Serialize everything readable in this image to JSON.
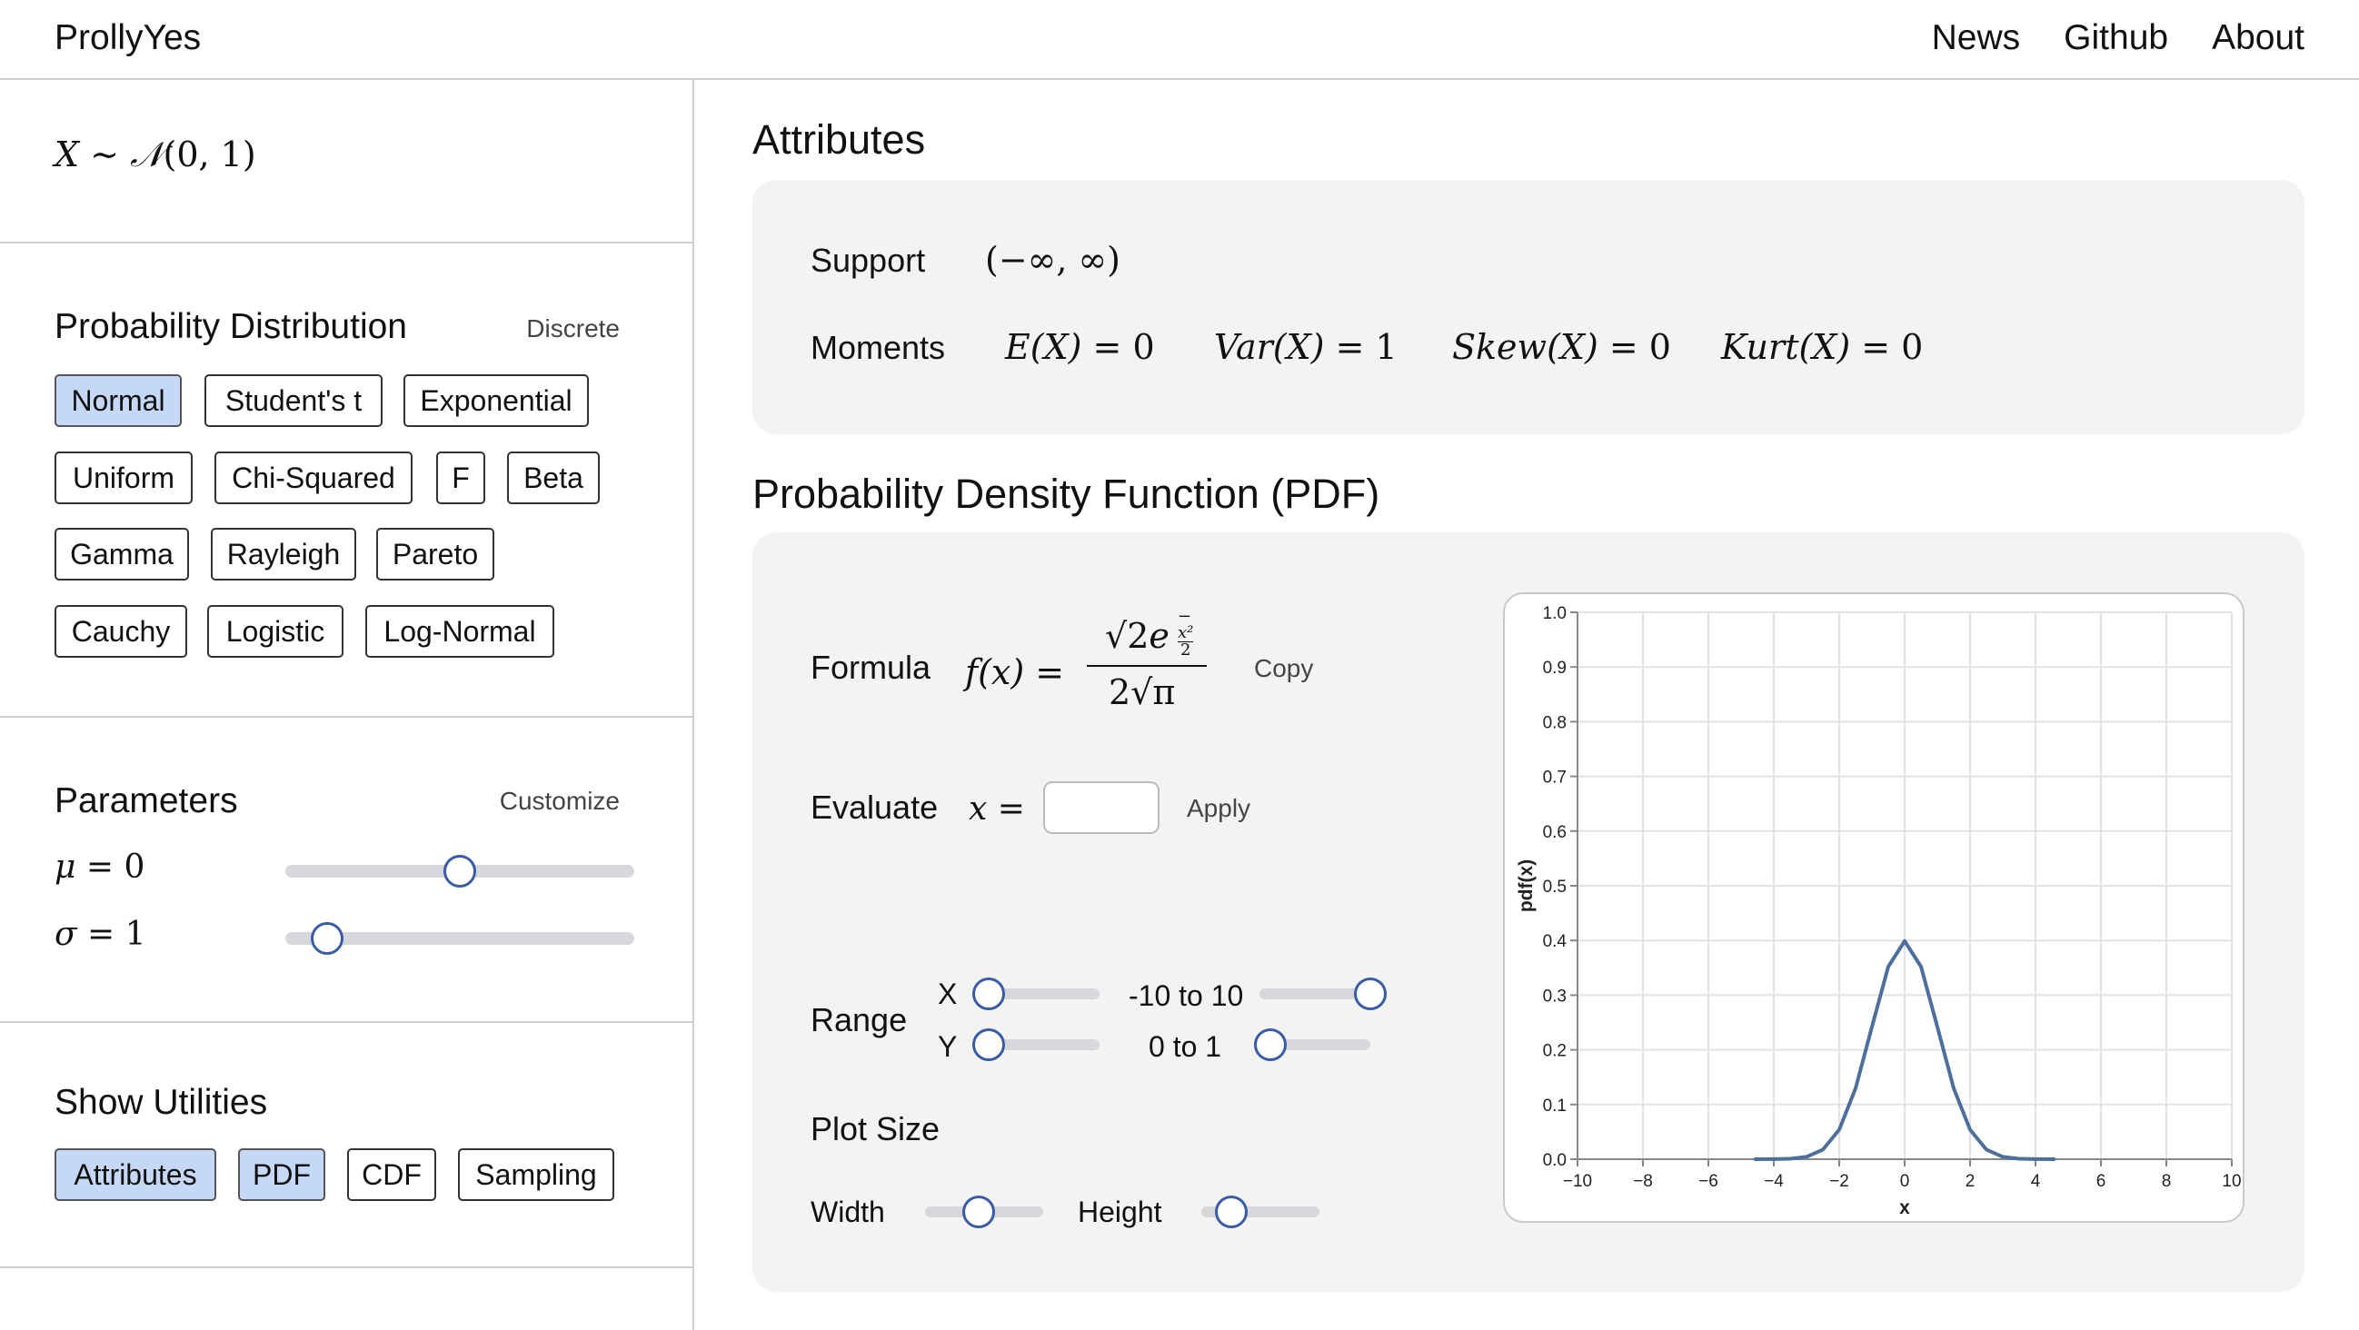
{
  "nav": {
    "brand": "ProllyYes",
    "links": [
      "News",
      "Github",
      "About"
    ]
  },
  "sidebar": {
    "notation": {
      "var": "X",
      "sim": "∼",
      "N": "𝒩",
      "args": "(0, 1)"
    },
    "distribution": {
      "title": "Probability Distribution",
      "toggle": "Discrete",
      "options": [
        {
          "label": "Normal",
          "active": true
        },
        {
          "label": "Student's t",
          "active": false
        },
        {
          "label": "Exponential",
          "active": false
        },
        {
          "label": "Uniform",
          "active": false
        },
        {
          "label": "Chi-Squared",
          "active": false
        },
        {
          "label": "F",
          "active": false
        },
        {
          "label": "Beta",
          "active": false
        },
        {
          "label": "Gamma",
          "active": false
        },
        {
          "label": "Rayleigh",
          "active": false
        },
        {
          "label": "Pareto",
          "active": false
        },
        {
          "label": "Cauchy",
          "active": false
        },
        {
          "label": "Logistic",
          "active": false
        },
        {
          "label": "Log-Normal",
          "active": false
        }
      ]
    },
    "parameters": {
      "title": "Parameters",
      "customize": "Customize",
      "mu": {
        "symbol": "μ",
        "eq": "= 0",
        "value": 0,
        "position": 0.5
      },
      "sigma": {
        "symbol": "σ",
        "eq": "= 1",
        "value": 1,
        "position": 0.12
      }
    },
    "utilities": {
      "title": "Show Utilities",
      "options": [
        {
          "label": "Attributes",
          "active": true
        },
        {
          "label": "PDF",
          "active": true
        },
        {
          "label": "CDF",
          "active": false
        },
        {
          "label": "Sampling",
          "active": false
        }
      ]
    }
  },
  "attributes": {
    "title": "Attributes",
    "support_label": "Support",
    "support_value": "(−∞, ∞)",
    "moments_label": "Moments",
    "moments": [
      {
        "name": "E",
        "arg": "(X)",
        "val": "= 0"
      },
      {
        "name": "Var",
        "arg": "(X)",
        "val": "= 1"
      },
      {
        "name": "Skew",
        "arg": "(X)",
        "val": "= 0"
      },
      {
        "name": "Kurt",
        "arg": "(X)",
        "val": "= 0"
      }
    ]
  },
  "pdf": {
    "title": "Probability Density Function (PDF)",
    "formula_label": "Formula",
    "formula_lhs": "f(x) =",
    "formula_num_sqrt": "√2",
    "formula_num_e": "e",
    "formula_exp_sign": "−",
    "formula_exp_num": "x²",
    "formula_exp_den": "2",
    "formula_den": "2√π",
    "copy": "Copy",
    "evaluate_label": "Evaluate",
    "evaluate_var": "x =",
    "evaluate_value": "",
    "apply": "Apply",
    "range_label": "Range",
    "range_x_label": "X",
    "range_x_text": "-10 to 10",
    "range_y_label": "Y",
    "range_y_text": "0 to 1",
    "range_x_low": 0.0,
    "range_x_high": 1.0,
    "range_y_low": 0.0,
    "range_y_high": 0.1,
    "plot_size_label": "Plot Size",
    "width_label": "Width",
    "width_position": 0.45,
    "height_label": "Height",
    "height_position": 0.25
  },
  "chart_data": {
    "type": "line",
    "title": "",
    "xlabel": "x",
    "ylabel": "pdf(x)",
    "xlim": [
      -10,
      10
    ],
    "ylim": [
      0,
      1
    ],
    "xticks": [
      -10,
      -8,
      -6,
      -4,
      -2,
      0,
      2,
      4,
      6,
      8,
      10
    ],
    "xtick_labels": [
      "−10",
      "−8",
      "−6",
      "−4",
      "−2",
      "0",
      "2",
      "4",
      "6",
      "8",
      "10"
    ],
    "yticks": [
      0.0,
      0.1,
      0.2,
      0.3,
      0.4,
      0.5,
      0.6,
      0.7,
      0.8,
      0.9,
      1.0
    ],
    "ytick_labels": [
      "0.0",
      "0.1",
      "0.2",
      "0.3",
      "0.4",
      "0.5",
      "0.6",
      "0.7",
      "0.8",
      "0.9",
      "1.0"
    ],
    "grid": true,
    "color": "#4e6e9c",
    "series": [
      {
        "x": [
          -4.6,
          -4,
          -3.5,
          -3,
          -2.5,
          -2,
          -1.5,
          -1,
          -0.5,
          0,
          0.5,
          1,
          1.5,
          2,
          2.5,
          3,
          3.5,
          4,
          4.6
        ],
        "y": [
          0.0,
          0.0001,
          0.0009,
          0.0044,
          0.0175,
          0.054,
          0.1295,
          0.242,
          0.3521,
          0.3989,
          0.3521,
          0.242,
          0.1295,
          0.054,
          0.0175,
          0.0044,
          0.0009,
          0.0001,
          0.0
        ]
      }
    ]
  }
}
